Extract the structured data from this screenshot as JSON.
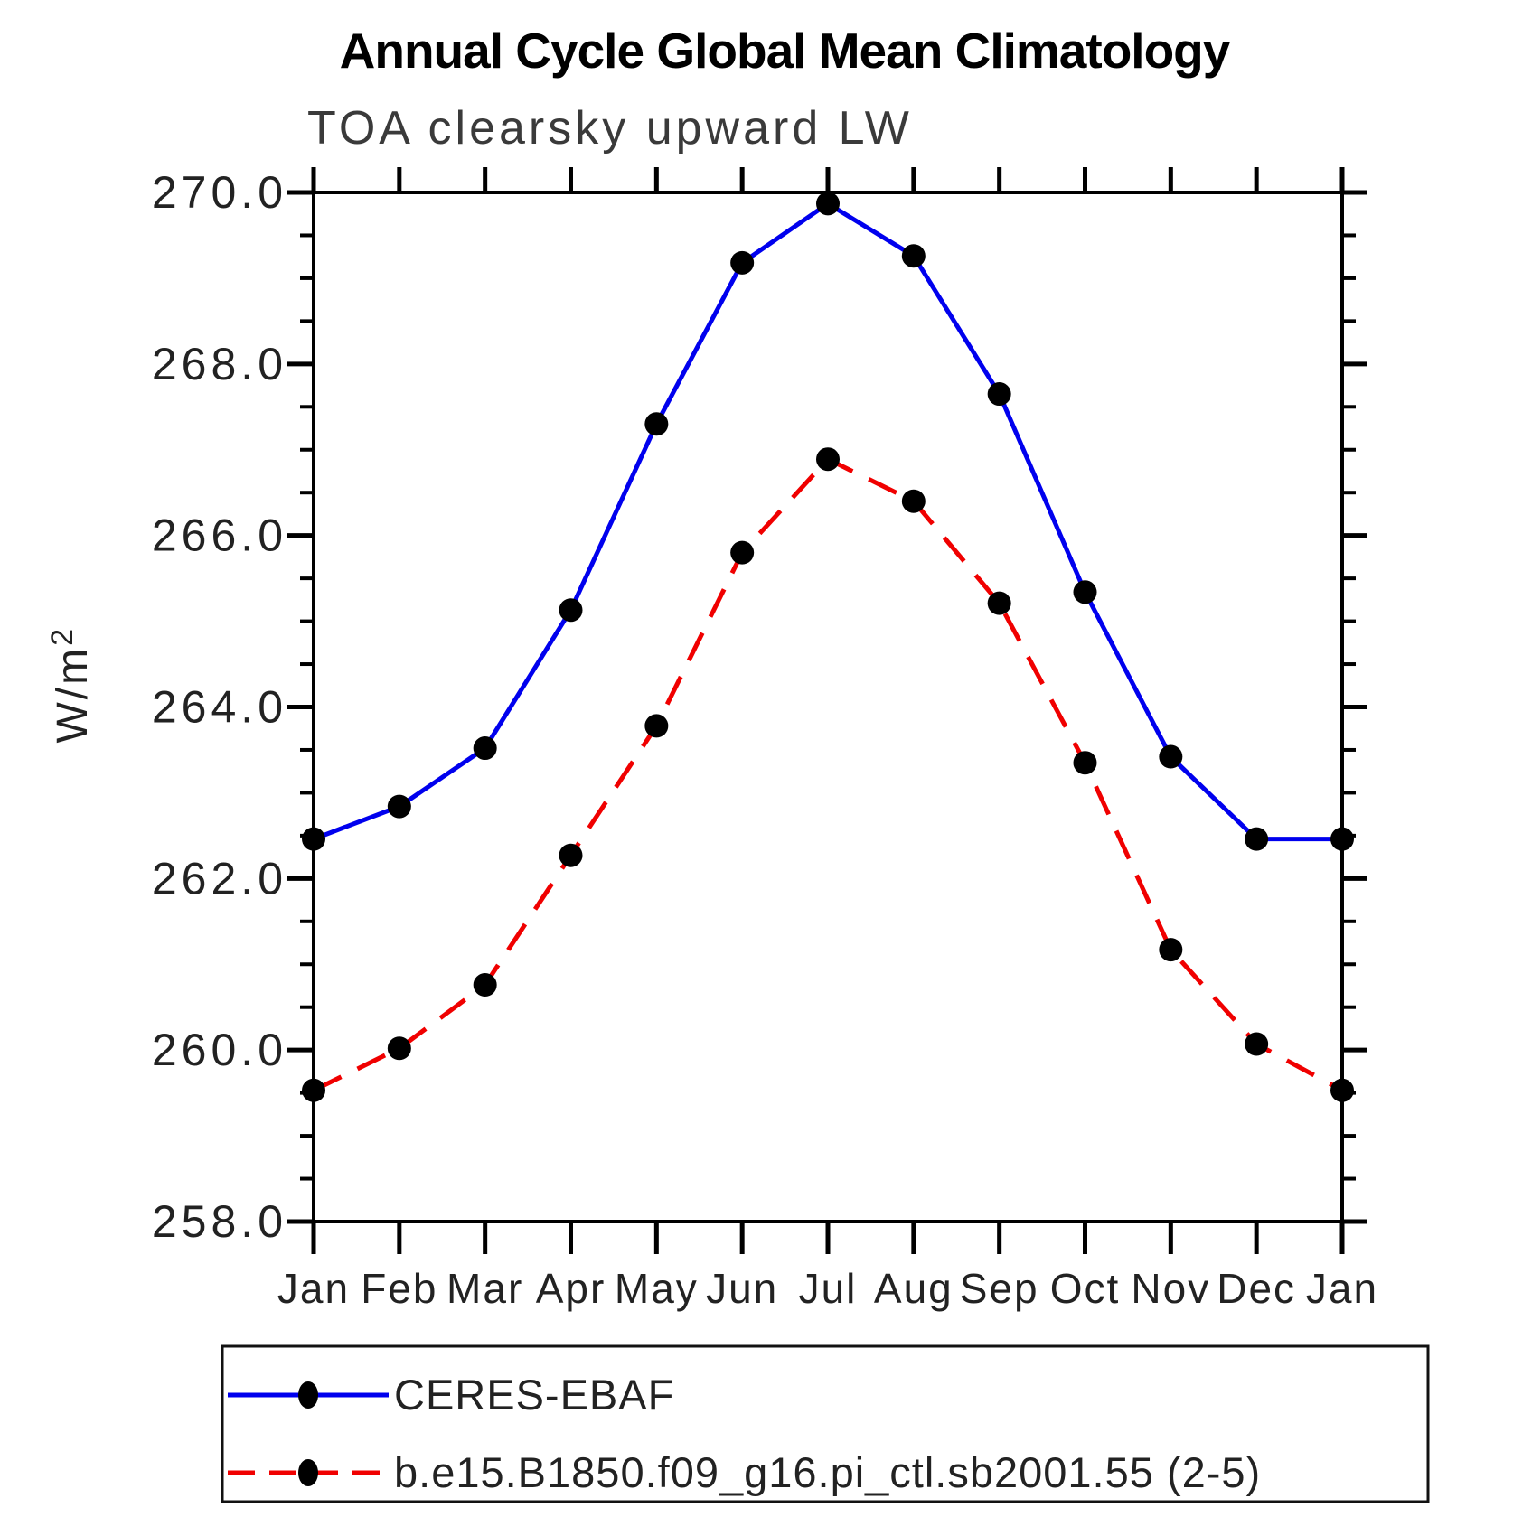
{
  "chart_data": {
    "type": "line",
    "title": "Annual Cycle Global Mean Climatology",
    "subtitle": "TOA clearsky upward LW",
    "ylabel": "W/m²",
    "x_categories": [
      "Jan",
      "Feb",
      "Mar",
      "Apr",
      "May",
      "Jun",
      "Jul",
      "Aug",
      "Sep",
      "Oct",
      "Nov",
      "Dec",
      "Jan"
    ],
    "ylim": [
      258.0,
      270.0
    ],
    "ytick_major_step": 2.0,
    "ytick_minor_step": 0.5,
    "ytick_labels": [
      "258.0",
      "260.0",
      "262.0",
      "264.0",
      "266.0",
      "268.0",
      "270.0"
    ],
    "grid": false,
    "legend_position": "bottom-box",
    "axis_color": "#000000",
    "text_color": "#222222",
    "marker_color": "#000000",
    "series": [
      {
        "name": "CERES-EBAF",
        "color": "#0000ee",
        "style": "solid",
        "marker": "circle",
        "values": [
          262.46,
          262.84,
          263.52,
          265.13,
          267.3,
          269.18,
          269.87,
          269.26,
          267.65,
          265.34,
          263.42,
          262.46,
          262.46
        ]
      },
      {
        "name": "b.e15.B1850.f09_g16.pi_ctl.sb2001.55 (2-5)",
        "color": "#f00000",
        "style": "dashed",
        "marker": "circle",
        "values": [
          259.53,
          260.02,
          260.76,
          262.27,
          263.78,
          265.8,
          266.89,
          266.4,
          265.21,
          263.35,
          261.17,
          260.07,
          259.53
        ]
      }
    ]
  }
}
